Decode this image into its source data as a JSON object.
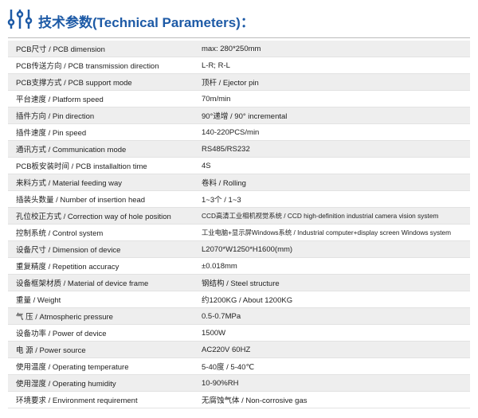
{
  "header": {
    "title": "技术参数(Technical Parameters)："
  },
  "table": {
    "rows": [
      [
        "PCB尺寸 / PCB dimension",
        "max: 280*250mm"
      ],
      [
        "PCB传送方向 / PCB transmission direction",
        "L-R; R-L"
      ],
      [
        "PCB支撑方式 / PCB support mode",
        "顶杆 / Ejector pin"
      ],
      [
        "平台速度 / Platform speed",
        "70m/min"
      ],
      [
        "插件方向 / Pin direction",
        "90°递增 / 90° incremental"
      ],
      [
        "插件速度 / Pin speed",
        "140-220PCS/min"
      ],
      [
        "通讯方式 / Communication mode",
        "RS485/RS232"
      ],
      [
        "PCB板安装时间 / PCB installaltion time",
        "4S"
      ],
      [
        "来料方式 / Material feeding way",
        "卷料 / Rolling"
      ],
      [
        "插装头数量 / Number of insertion head",
        "1~3个 / 1~3"
      ],
      [
        "孔位校正方式 / Correction way of hole position",
        "CCD高清工业相机视觉系统 / CCD high-definition industrial camera vision system"
      ],
      [
        "控制系统 / Control system",
        "工业电脑+显示屏Windows系统 / Industrial computer+display screen Windows system"
      ],
      [
        "设备尺寸 / Dimension of device",
        "L2070*W1250*H1600(mm)"
      ],
      [
        "重复精度 / Repetition accuracy",
        "±0.018mm"
      ],
      [
        "设备框架材质 / Material of device frame",
        "钢结构 / Steel structure"
      ],
      [
        "重量 / Weight",
        "约1200KG / About 1200KG"
      ],
      [
        "气 压 / Atmospheric pressure",
        "0.5-0.7MPa"
      ],
      [
        "设备功率 / Power of device",
        "1500W"
      ],
      [
        "电 源 / Power source",
        "AC220V 60HZ"
      ],
      [
        "使用温度 / Operating temperature",
        "5-40度 / 5-40℃"
      ],
      [
        "使用湿度 / Operating humidity",
        "10-90%RH"
      ],
      [
        "环境要求 / Environment requirement",
        "无腐蚀气体 / Non-corrosive gas"
      ]
    ]
  }
}
